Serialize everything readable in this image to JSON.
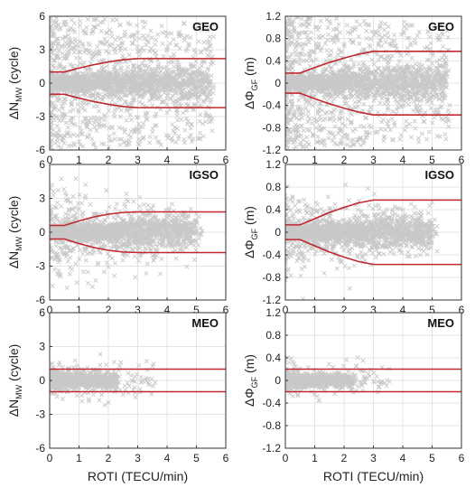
{
  "chart_data": [
    {
      "type": "scatter",
      "title": "GEO",
      "ylabel_main": "ΔN",
      "ylabel_sub": "MW",
      "ylabel_unit": " (cycle)",
      "xlabel": "",
      "xlim": [
        0,
        6
      ],
      "ylim": [
        -6,
        6
      ],
      "xticks": [
        "0",
        "1",
        "2",
        "3",
        "4",
        "5",
        "6"
      ],
      "yticks": [
        "-6",
        "-3",
        "0",
        "3",
        "6"
      ],
      "ytick_values": [
        -6,
        -3,
        0,
        3,
        6
      ],
      "threshold": {
        "x": [
          0,
          0.5,
          1,
          1.5,
          2,
          2.5,
          3,
          6
        ],
        "upper": [
          1.0,
          1.0,
          1.35,
          1.65,
          1.9,
          2.1,
          2.2,
          2.2
        ]
      },
      "scatter": {
        "core_xmax": 5.5,
        "core_spread": 0.45,
        "outlier_density": "high"
      }
    },
    {
      "type": "scatter",
      "title": "GEO",
      "ylabel_main": "ΔΦ",
      "ylabel_sub": "GF",
      "ylabel_unit": " (m)",
      "xlabel": "",
      "xlim": [
        0,
        6
      ],
      "ylim": [
        -1.2,
        1.2
      ],
      "xticks": [
        "0",
        "1",
        "2",
        "3",
        "4",
        "5",
        "6"
      ],
      "yticks": [
        "-1.2",
        "-0.8",
        "-0.4",
        "0",
        "0.4",
        "0.8",
        "1.2"
      ],
      "ytick_values": [
        -1.2,
        -0.8,
        -0.4,
        0,
        0.4,
        0.8,
        1.2
      ],
      "threshold": {
        "x": [
          0,
          0.5,
          1,
          1.5,
          2,
          2.5,
          3,
          6
        ],
        "upper": [
          0.18,
          0.18,
          0.28,
          0.37,
          0.45,
          0.52,
          0.57,
          0.57
        ]
      },
      "scatter": {
        "core_xmax": 5.5,
        "core_spread": 0.09,
        "outlier_density": "high"
      }
    },
    {
      "type": "scatter",
      "title": "IGSO",
      "ylabel_main": "ΔN",
      "ylabel_sub": "MW",
      "ylabel_unit": " (cycle)",
      "xlabel": "",
      "xlim": [
        0,
        6
      ],
      "ylim": [
        -6,
        6
      ],
      "xticks": [
        "0",
        "1",
        "2",
        "3",
        "4",
        "5",
        "6"
      ],
      "yticks": [
        "-6",
        "-3",
        "0",
        "3",
        "6"
      ],
      "ytick_values": [
        -6,
        -3,
        0,
        3,
        6
      ],
      "threshold": {
        "x": [
          0,
          0.5,
          1,
          1.5,
          2,
          2.5,
          3,
          6
        ],
        "upper": [
          0.6,
          0.6,
          1.0,
          1.35,
          1.6,
          1.75,
          1.8,
          1.8
        ]
      },
      "scatter": {
        "core_xmax": 5.0,
        "core_spread": 0.4,
        "outlier_density": "medium"
      }
    },
    {
      "type": "scatter",
      "title": "IGSO",
      "ylabel_main": "ΔΦ",
      "ylabel_sub": "GF",
      "ylabel_unit": " (m)",
      "xlabel": "",
      "xlim": [
        0,
        6
      ],
      "ylim": [
        -1.2,
        1.2
      ],
      "xticks": [
        "0",
        "1",
        "2",
        "3",
        "4",
        "5",
        "6"
      ],
      "yticks": [
        "-1.2",
        "-0.8",
        "-0.4",
        "0",
        "0.4",
        "0.8",
        "1.2"
      ],
      "ytick_values": [
        -1.2,
        -0.8,
        -0.4,
        0,
        0.4,
        0.8,
        1.2
      ],
      "threshold": {
        "x": [
          0,
          0.5,
          1,
          1.5,
          2,
          2.5,
          3,
          6
        ],
        "upper": [
          0.13,
          0.13,
          0.24,
          0.35,
          0.44,
          0.52,
          0.57,
          0.57
        ]
      },
      "scatter": {
        "core_xmax": 5.0,
        "core_spread": 0.08,
        "outlier_density": "medium"
      }
    },
    {
      "type": "scatter",
      "title": "MEO",
      "ylabel_main": "ΔN",
      "ylabel_sub": "MW",
      "ylabel_unit": " (cycle)",
      "xlabel": "ROTI (TECU/min)",
      "xlim": [
        0,
        6
      ],
      "ylim": [
        -6,
        6
      ],
      "xticks": [
        "0",
        "1",
        "2",
        "3",
        "4",
        "5",
        "6"
      ],
      "yticks": [
        "-6",
        "-3",
        "0",
        "3",
        "6"
      ],
      "ytick_values": [
        -6,
        -3,
        0,
        3,
        6
      ],
      "threshold": {
        "x": [
          0,
          6
        ],
        "upper": [
          1.0,
          1.0
        ]
      },
      "scatter": {
        "core_xmax": 2.3,
        "core_spread": 0.3,
        "outlier_density": "low"
      }
    },
    {
      "type": "scatter",
      "title": "MEO",
      "ylabel_main": "ΔΦ",
      "ylabel_sub": "GF",
      "ylabel_unit": " (m)",
      "xlabel": "ROTI (TECU/min)",
      "xlim": [
        0,
        6
      ],
      "ylim": [
        -1.2,
        1.2
      ],
      "xticks": [
        "0",
        "1",
        "2",
        "3",
        "4",
        "5",
        "6"
      ],
      "yticks": [
        "-1.2",
        "-0.8",
        "-0.4",
        "0",
        "0.4",
        "0.8",
        "1.2"
      ],
      "ytick_values": [
        -1.2,
        -0.8,
        -0.4,
        0,
        0.4,
        0.8,
        1.2
      ],
      "threshold": {
        "x": [
          0,
          6
        ],
        "upper": [
          0.2,
          0.2
        ]
      },
      "scatter": {
        "core_xmax": 2.3,
        "core_spread": 0.05,
        "outlier_density": "low"
      }
    }
  ],
  "colors": {
    "scatter": "#c8c8c8",
    "threshold": "#c0282d",
    "grid": "#e4e4e4",
    "axis": "#333333"
  }
}
